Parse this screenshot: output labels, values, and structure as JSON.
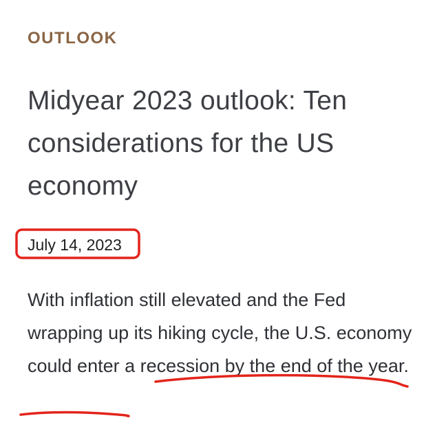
{
  "article": {
    "eyebrow": "OUTLOOK",
    "title": "Midyear 2023 outlook: Ten considerations for the US economy",
    "date": "July 14, 2023",
    "summary": "With inflation still elevated and the Fed wrapping up its hiking cycle, the U.S. economy could enter a recession by the end of the year."
  },
  "colors": {
    "eyebrow": "#8a6545",
    "title": "#3d3f44",
    "body": "#2f3136",
    "annotation_red": "#e3241b"
  }
}
